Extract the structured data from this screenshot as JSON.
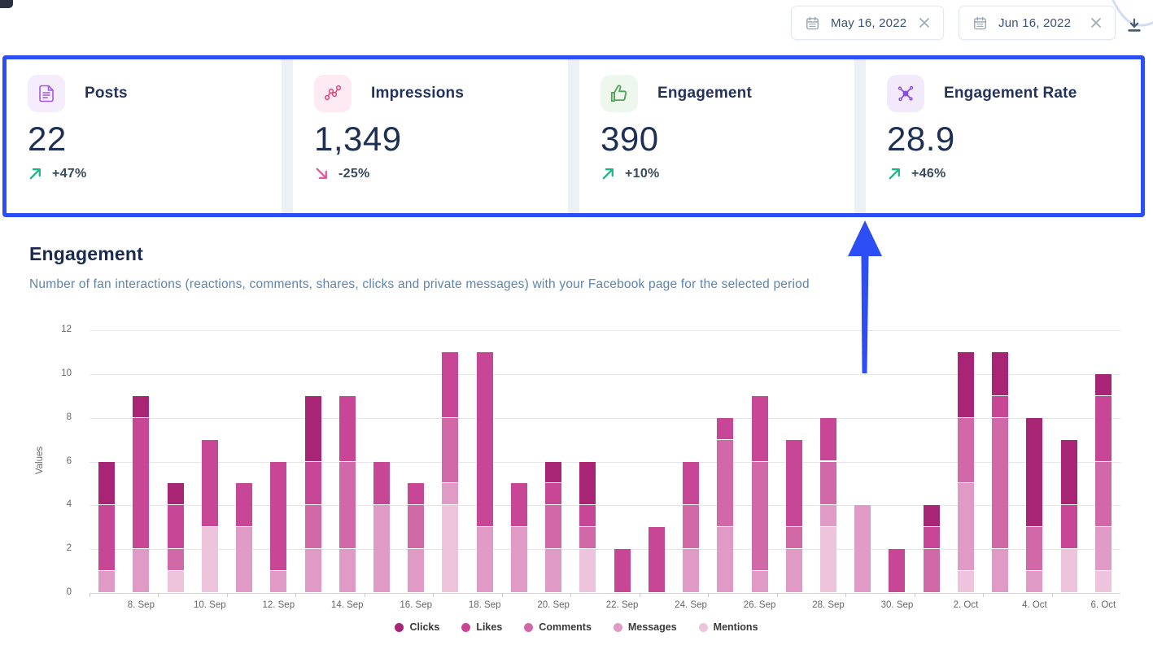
{
  "header": {
    "date_start": "May 16, 2022",
    "date_end": "Jun 16, 2022"
  },
  "kpi_cards": [
    {
      "id": "posts",
      "label": "Posts",
      "value": "22",
      "trend": "+47%",
      "trend_direction": "up",
      "icon": "document-icon",
      "icon_color": "#a158e8",
      "icon_bg": "#f5ecfc"
    },
    {
      "id": "impressions",
      "label": "Impressions",
      "value": "1,349",
      "trend": "-25%",
      "trend_direction": "down",
      "icon": "impressions-scatter-icon",
      "icon_color": "#e9487f",
      "icon_bg": "#fdeaf3"
    },
    {
      "id": "engagement",
      "label": "Engagement",
      "value": "390",
      "trend": "+10%",
      "trend_direction": "up",
      "icon": "thumbs-up-icon",
      "icon_color": "#55a45a",
      "icon_bg": "#edf7ee"
    },
    {
      "id": "engagement-rate",
      "label": "Engagement Rate",
      "value": "28.9",
      "trend": "+46%",
      "trend_direction": "up",
      "icon": "network-icon",
      "icon_color": "#8a4be0",
      "icon_bg": "#f2eafb"
    }
  ],
  "trend_colors": {
    "up": "#17b88a",
    "down": "#e9579b"
  },
  "section": {
    "title": "Engagement",
    "subtitle": "Number of fan interactions (reactions, comments, shares, clicks and private messages) with your Facebook page for the selected period"
  },
  "chart_data": {
    "type": "bar",
    "stacked": true,
    "title": "",
    "xlabel": "",
    "ylabel": "Values",
    "ylim": [
      0,
      12
    ],
    "y_ticks": [
      0,
      2,
      4,
      6,
      8,
      10,
      12
    ],
    "grid": true,
    "legend_position": "bottom",
    "stack_order_bottom_to_top": [
      "Mentions",
      "Messages",
      "Comments",
      "Likes",
      "Clicks"
    ],
    "categories": [
      "7. Sep",
      "8. Sep",
      "9. Sep",
      "10. Sep",
      "11. Sep",
      "12. Sep",
      "13. Sep",
      "14. Sep",
      "15. Sep",
      "16. Sep",
      "17. Sep",
      "18. Sep",
      "19. Sep",
      "20. Sep",
      "21. Sep",
      "22. Sep",
      "23. Sep",
      "24. Sep",
      "25. Sep",
      "26. Sep",
      "27. Sep",
      "28. Sep",
      "29. Sep",
      "30. Sep",
      "1. Oct",
      "2. Oct",
      "3. Oct",
      "4. Oct",
      "5. Oct",
      "6. Oct"
    ],
    "x_tick_labels": [
      "8. Sep",
      "10. Sep",
      "12. Sep",
      "14. Sep",
      "16. Sep",
      "18. Sep",
      "20. Sep",
      "22. Sep",
      "24. Sep",
      "26. Sep",
      "28. Sep",
      "30. Sep",
      "2. Oct",
      "4. Oct",
      "6. Oct"
    ],
    "series": [
      {
        "name": "Clicks",
        "color": "#a82474",
        "values": [
          2,
          1,
          1,
          0,
          0,
          0,
          3,
          0,
          0,
          0,
          0,
          0,
          0,
          1,
          2,
          0,
          0,
          0,
          0,
          0,
          0,
          0,
          0,
          0,
          1,
          3,
          2,
          5,
          3,
          1
        ]
      },
      {
        "name": "Likes",
        "color": "#c74695",
        "values": [
          3,
          6,
          2,
          4,
          2,
          5,
          2,
          3,
          2,
          1,
          3,
          8,
          2,
          1,
          1,
          2,
          3,
          2,
          1,
          3,
          4,
          2,
          0,
          2,
          1,
          0,
          1,
          0,
          2,
          3
        ]
      },
      {
        "name": "Comments",
        "color": "#d168a8",
        "values": [
          0,
          0,
          1,
          0,
          0,
          0,
          2,
          4,
          0,
          2,
          3,
          0,
          0,
          2,
          1,
          0,
          0,
          2,
          4,
          5,
          1,
          2,
          0,
          0,
          2,
          3,
          6,
          2,
          0,
          3
        ]
      },
      {
        "name": "Messages",
        "color": "#e09ac6",
        "values": [
          1,
          2,
          0,
          0,
          3,
          1,
          2,
          2,
          4,
          2,
          1,
          3,
          3,
          2,
          0,
          0,
          0,
          2,
          3,
          1,
          2,
          1,
          4,
          0,
          0,
          4,
          2,
          1,
          0,
          2
        ]
      },
      {
        "name": "Mentions",
        "color": "#eec3dc",
        "values": [
          0,
          0,
          1,
          3,
          0,
          0,
          0,
          0,
          0,
          0,
          4,
          0,
          0,
          0,
          2,
          0,
          0,
          0,
          0,
          0,
          0,
          3,
          0,
          0,
          0,
          1,
          0,
          0,
          2,
          1
        ]
      }
    ]
  }
}
